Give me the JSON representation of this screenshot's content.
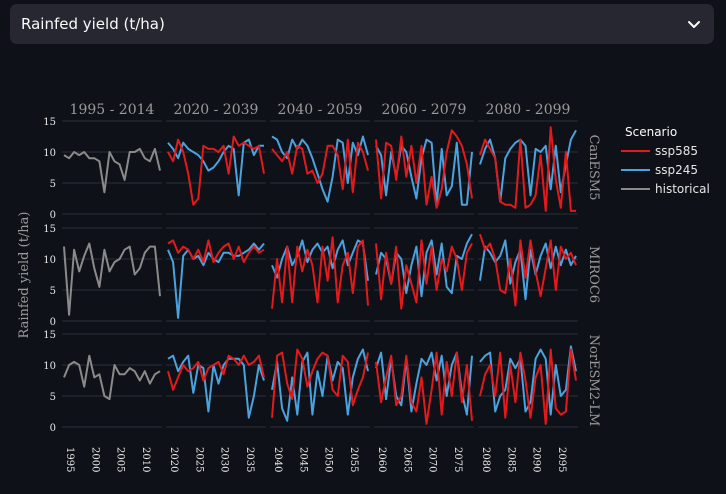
{
  "selector": {
    "value": "Rainfed yield (t/ha)"
  },
  "chart_data": {
    "type": "line",
    "title": "",
    "ylabel": "Rainfed yield (t/ha)",
    "ylim": [
      0,
      15
    ],
    "yticks": [
      0,
      5,
      10,
      15
    ],
    "periods": [
      "1995 - 2014",
      "2020 - 2039",
      "2040 - 2059",
      "2060 - 2079",
      "2080 - 2099"
    ],
    "period_starts": [
      1995,
      2020,
      2040,
      2060,
      2080
    ],
    "xticks": [
      [
        1995,
        2000,
        2005,
        2010
      ],
      [
        2020,
        2025,
        2030,
        2035
      ],
      [
        2040,
        2045,
        2050,
        2055
      ],
      [
        2060,
        2065,
        2070,
        2075
      ],
      [
        2080,
        2085,
        2090,
        2095
      ]
    ],
    "models": [
      "CanESM5",
      "MIROC6",
      "NorESM2-LM"
    ],
    "legend": {
      "title": "Scenario",
      "position": "right",
      "entries": [
        {
          "name": "ssp585",
          "color": "#e31a1c"
        },
        {
          "name": "ssp245",
          "color": "#4aa3df"
        },
        {
          "name": "historical",
          "color": "#8a8a8a"
        }
      ]
    },
    "panels": {
      "CanESM5": {
        "historical": [
          9.5,
          9,
          10,
          9.5,
          10,
          9,
          9,
          8.5,
          3.5,
          10,
          8.5,
          8,
          5.5,
          10,
          10,
          10.5,
          9,
          8.5,
          10.5,
          7
        ],
        "ssp245": [
          [
            11.5,
            10.5,
            9,
            11.5,
            10.5,
            10,
            9.5,
            8.5,
            7,
            7.5,
            8.5,
            10,
            11,
            10.5,
            3,
            11.5,
            12,
            9.5,
            11,
            11
          ],
          [
            12.5,
            12,
            10,
            9,
            12,
            10.5,
            12,
            11,
            9,
            6.5,
            4,
            2,
            6,
            12,
            11.5,
            5,
            11.5,
            9.5,
            12.5,
            9.5
          ],
          [
            11,
            9.5,
            3,
            10,
            6,
            11,
            10,
            6,
            2.5,
            9,
            12,
            11.5,
            1.5,
            10.5,
            3,
            4.5,
            11.5,
            1.5,
            1.5,
            10
          ],
          [
            8,
            10.5,
            12,
            9,
            2,
            9,
            10.5,
            11.5,
            12,
            11,
            3,
            10.5,
            10,
            11,
            4,
            11,
            3.5,
            8,
            12,
            13.5
          ]
        ],
        "ssp585": [
          [
            10,
            8.5,
            12,
            10,
            6.5,
            1.5,
            2.5,
            11,
            10.5,
            10.5,
            10,
            11,
            6.5,
            12.5,
            11,
            11.5,
            11,
            10.5,
            11,
            6.5
          ],
          [
            10.5,
            9.5,
            8.5,
            10,
            6.5,
            11,
            10.5,
            6.5,
            7,
            5,
            6.5,
            11,
            11,
            9.5,
            4,
            12,
            3.5,
            11.5,
            10,
            7
          ],
          [
            12,
            2.5,
            11.5,
            11,
            5.5,
            12.5,
            6,
            11,
            5,
            11,
            1.5,
            6,
            1,
            4,
            10,
            13.5,
            12.5,
            11,
            8,
            2.5
          ],
          [
            9.5,
            12,
            10.5,
            9,
            2,
            1.5,
            1.5,
            1,
            12,
            1,
            1.5,
            3,
            9.5,
            0.5,
            14,
            5.5,
            1,
            10,
            0.5,
            0.5
          ]
        ]
      },
      "MIROC6": {
        "historical": [
          12,
          1,
          11.5,
          8,
          10.5,
          12.5,
          8.5,
          5.5,
          11.5,
          8,
          9.5,
          10,
          11.5,
          12,
          7.5,
          8.5,
          11,
          12,
          12,
          4
        ],
        "ssp245": [
          [
            11.5,
            9.5,
            0.5,
            10.5,
            11.5,
            10,
            10.5,
            9,
            11,
            10,
            9.5,
            11,
            11,
            10.5,
            10.5,
            11,
            11.5,
            12.5,
            11.5,
            12.5
          ],
          [
            9,
            7,
            10,
            12,
            9,
            10.5,
            13,
            9.5,
            11.5,
            12.5,
            11,
            12,
            8.5,
            11.5,
            13,
            9,
            11,
            13,
            12.5,
            6.5
          ],
          [
            7.5,
            11,
            10,
            6,
            11,
            10,
            4.5,
            9,
            12,
            4,
            11,
            13,
            7.5,
            12.5,
            5.5,
            4.5,
            10.5,
            10,
            12.5,
            14
          ],
          [
            6.5,
            12,
            11,
            9.5,
            10.5,
            13,
            6,
            9.5,
            11.5,
            3.5,
            11.5,
            7.5,
            10.5,
            12.5,
            8.5,
            12,
            9,
            11.5,
            9,
            10.5
          ]
        ],
        "ssp585": [
          [
            12.5,
            13,
            11,
            12,
            11.5,
            10,
            11.5,
            9.5,
            13,
            9.5,
            11,
            12,
            12.5,
            10,
            12,
            9.5,
            11,
            12,
            11,
            11.5
          ],
          [
            2,
            10,
            3,
            12,
            3,
            12,
            8,
            11.5,
            9,
            3,
            12,
            6.5,
            13.5,
            3,
            9,
            11,
            4.5,
            12,
            13,
            2.5
          ],
          [
            12.5,
            3.5,
            11,
            6,
            12,
            2,
            9,
            6,
            3,
            13,
            6,
            12,
            5,
            10,
            8,
            12,
            10,
            5,
            11,
            12.5
          ],
          [
            14,
            11.5,
            12.5,
            10,
            5,
            4.5,
            10,
            2.5,
            13,
            7,
            13,
            8,
            4,
            8.5,
            13,
            5,
            12,
            10,
            11,
            9
          ]
        ]
      },
      "NorESM2-LM": {
        "historical": [
          8,
          10,
          10.5,
          10,
          6.5,
          11.5,
          8,
          8.5,
          5,
          4.5,
          10,
          8.5,
          8.5,
          9.5,
          9,
          7.5,
          9,
          7,
          8.5,
          9
        ],
        "ssp245": [
          [
            11,
            11.5,
            9,
            10.5,
            11.5,
            5.5,
            10,
            9.5,
            2.5,
            10,
            7,
            10,
            11,
            11,
            11,
            10,
            1.5,
            5,
            10,
            7.5
          ],
          [
            6,
            10.5,
            3,
            1,
            8,
            2,
            10.5,
            12,
            2,
            9,
            5,
            11.5,
            7.5,
            10.5,
            9.5,
            2,
            8,
            11,
            12.5,
            9
          ],
          [
            9.5,
            12,
            4.5,
            11,
            5,
            3.5,
            11,
            2.5,
            7,
            11,
            10,
            12,
            7.5,
            11.5,
            5,
            10,
            12,
            5.5,
            2,
            11.5
          ],
          [
            10.5,
            11.5,
            12,
            2.5,
            5,
            6,
            11,
            9.5,
            11,
            2.5,
            4,
            11,
            12.5,
            11,
            2,
            10,
            5,
            6,
            13,
            9
          ]
        ],
        "ssp585": [
          [
            9,
            6,
            8,
            10,
            9,
            9.5,
            10.5,
            7.5,
            9.5,
            10,
            10.5,
            8.5,
            11.5,
            11,
            10,
            11.5,
            10,
            10.5,
            11.5,
            8
          ],
          [
            1.5,
            11.5,
            12,
            7,
            4.5,
            12.5,
            11,
            6.5,
            9,
            11,
            12,
            11.5,
            6,
            5,
            11.5,
            10.5,
            3.5,
            6,
            8,
            12
          ],
          [
            10.5,
            4,
            8,
            11.5,
            3.5,
            5,
            11.5,
            4,
            2.5,
            8,
            0.5,
            6,
            12,
            2,
            10.5,
            5,
            12,
            4,
            10,
            1
          ],
          [
            5,
            8.5,
            10,
            5,
            12,
            1.5,
            10,
            4,
            12,
            7.5,
            1.5,
            8,
            10,
            0.5,
            12.5,
            3,
            2,
            2.5,
            12.5,
            7.5
          ]
        ]
      }
    }
  }
}
